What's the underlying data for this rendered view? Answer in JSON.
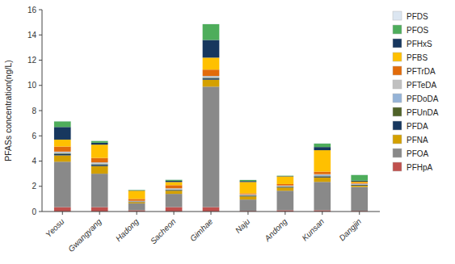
{
  "chart_data": {
    "type": "bar",
    "stacked": true,
    "grid": false,
    "legend": "right",
    "ylabel": "PFASs concentration(ng/L)",
    "categories": [
      "Yeosu",
      "Gwangyang",
      "Hadong",
      "Sacheon",
      "Gimhae",
      "Naju",
      "Andong",
      "Kunsan",
      "Dangjin"
    ],
    "ylim": [
      0,
      16
    ],
    "yticks": [
      0,
      2,
      4,
      6,
      8,
      10,
      12,
      14,
      16
    ],
    "series": [
      {
        "name": "PFHpA",
        "color": "#c0504d",
        "values": [
          0.35,
          0.35,
          0.1,
          0.35,
          0.35,
          0.05,
          0.1,
          0.1,
          0.05
        ]
      },
      {
        "name": "PFOA",
        "color": "#898989",
        "values": [
          3.6,
          2.65,
          0.55,
          1.05,
          9.55,
          0.9,
          1.55,
          2.25,
          1.9
        ]
      },
      {
        "name": "PFNA",
        "color": "#d4a000",
        "values": [
          0.5,
          0.6,
          0.1,
          0.25,
          0.55,
          0.25,
          0.25,
          0.35,
          0.1
        ]
      },
      {
        "name": "PFDA",
        "color": "#17375e",
        "values": [
          0.1,
          0.1,
          0.05,
          0.05,
          0.1,
          0.05,
          0.05,
          0.05,
          0.05
        ]
      },
      {
        "name": "PFUnDA",
        "color": "#4f6228",
        "values": [
          0.05,
          0.05,
          0.0,
          0.03,
          0.05,
          0.03,
          0.03,
          0.05,
          0.03
        ]
      },
      {
        "name": "PFDoDA",
        "color": "#95b3d7",
        "values": [
          0.05,
          0.05,
          0.0,
          0.03,
          0.05,
          0.03,
          0.03,
          0.08,
          0.03
        ]
      },
      {
        "name": "PFTeDA",
        "color": "#c0c0c0",
        "values": [
          0.1,
          0.1,
          0.05,
          0.08,
          0.1,
          0.05,
          0.05,
          0.08,
          0.05
        ]
      },
      {
        "name": "PFTrDA",
        "color": "#e26b0a",
        "values": [
          0.4,
          0.35,
          0.15,
          0.25,
          0.5,
          0.08,
          0.12,
          0.2,
          0.08
        ]
      },
      {
        "name": "PFBS",
        "color": "#ffc000",
        "values": [
          0.55,
          1.05,
          0.65,
          0.25,
          0.95,
          0.9,
          0.6,
          1.7,
          0.08
        ]
      },
      {
        "name": "PFHxS",
        "color": "#17375e",
        "values": [
          1.0,
          0.15,
          0.03,
          0.1,
          1.4,
          0.08,
          0.03,
          0.25,
          0.08
        ]
      },
      {
        "name": "PFOS",
        "color": "#4ead5b",
        "values": [
          0.45,
          0.15,
          0.03,
          0.08,
          1.25,
          0.08,
          0.03,
          0.28,
          0.45
        ]
      },
      {
        "name": "PFDS",
        "color": "#dce6f1",
        "values": [
          0.03,
          0.03,
          0.0,
          0.03,
          0.03,
          0.03,
          0.0,
          0.03,
          0.03
        ]
      }
    ]
  }
}
